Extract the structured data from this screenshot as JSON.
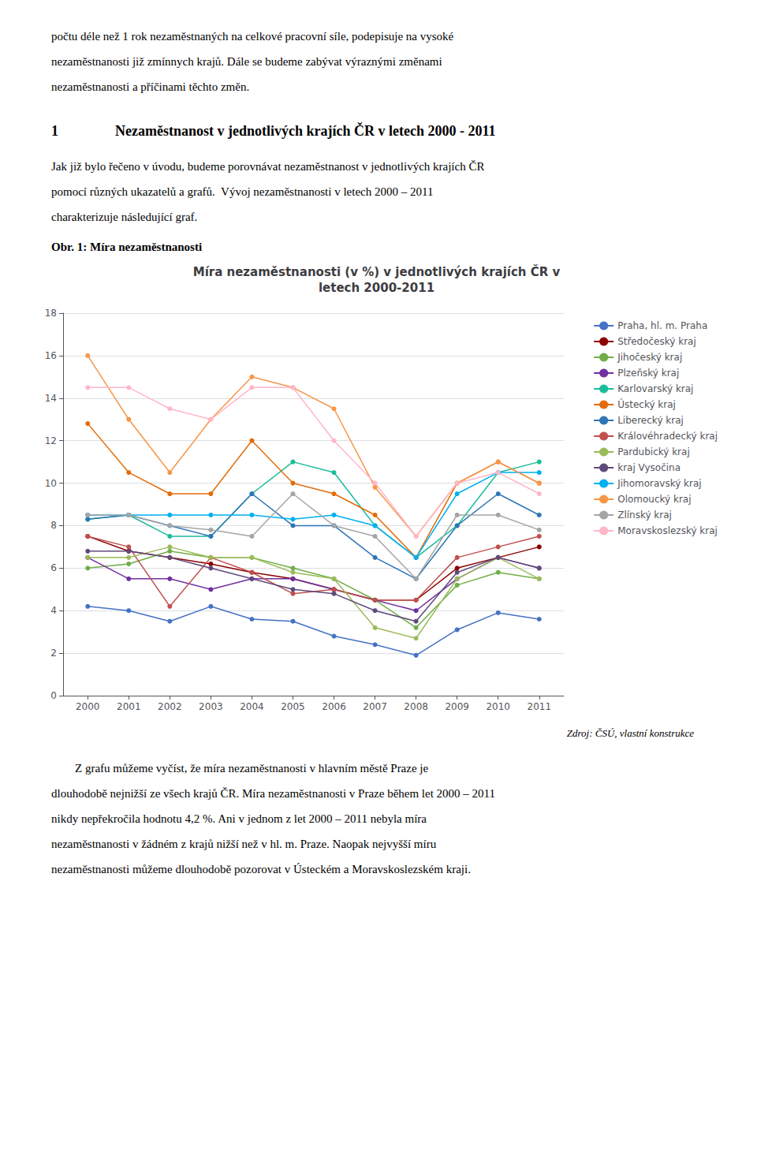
{
  "chart_data": {
    "type": "line",
    "title": "Míra nezaměstnanosti (v %) v jednotlivých krajích ČR v\nletech 2000-2011",
    "x": [
      2000,
      2001,
      2002,
      2003,
      2004,
      2005,
      2006,
      2007,
      2008,
      2009,
      2010,
      2011
    ],
    "xlim": [
      1999.4,
      2011.6
    ],
    "xticks": [
      2000,
      2001,
      2002,
      2003,
      2004,
      2005,
      2006,
      2007,
      2008,
      2009,
      2010,
      2011
    ],
    "ylim": [
      0,
      18
    ],
    "yticks": [
      0,
      2,
      4,
      6,
      8,
      10,
      12,
      14,
      16,
      18
    ],
    "grid": true,
    "legend": "right",
    "marker": "circle",
    "series": [
      {
        "name": "Praha, hl. m. Praha",
        "color": "#4472C4",
        "values": [
          4.2,
          4.0,
          3.5,
          4.2,
          3.6,
          3.5,
          2.8,
          2.4,
          1.9,
          3.1,
          3.9,
          3.6
        ]
      },
      {
        "name": "Středočeský kraj",
        "color": "#8B0000",
        "values": [
          7.5,
          6.8,
          6.5,
          6.2,
          5.8,
          5.5,
          5.0,
          4.5,
          4.5,
          6.0,
          6.5,
          7.0
        ]
      },
      {
        "name": "Jihočeský kraj",
        "color": "#70AD47",
        "values": [
          6.0,
          6.2,
          6.8,
          6.5,
          6.5,
          6.0,
          5.5,
          4.5,
          3.2,
          5.2,
          5.8,
          5.5
        ]
      },
      {
        "name": "Plzeňský kraj",
        "color": "#7030A0",
        "values": [
          6.5,
          5.5,
          5.5,
          5.0,
          5.5,
          5.5,
          5.0,
          4.5,
          4.0,
          5.5,
          6.5,
          6.0
        ]
      },
      {
        "name": "Karlovarský kraj",
        "color": "#1ABC9C",
        "values": [
          8.3,
          8.5,
          7.5,
          7.5,
          9.5,
          11.0,
          10.5,
          8.0,
          6.5,
          8.0,
          10.5,
          11.0
        ]
      },
      {
        "name": "Ústecký kraj",
        "color": "#E36C09",
        "values": [
          12.8,
          10.5,
          9.5,
          9.5,
          12.0,
          10.0,
          9.5,
          8.5,
          6.5,
          10.0,
          11.0,
          10.0
        ]
      },
      {
        "name": "Liberecký kraj",
        "color": "#2E75B6",
        "values": [
          8.3,
          8.5,
          8.0,
          7.5,
          9.5,
          8.0,
          8.0,
          6.5,
          5.5,
          8.0,
          9.5,
          8.5
        ]
      },
      {
        "name": "Královéhradecký kraj",
        "color": "#C0504D",
        "values": [
          7.5,
          7.0,
          4.2,
          6.5,
          5.8,
          4.8,
          5.0,
          4.5,
          4.5,
          6.5,
          7.0,
          7.5
        ]
      },
      {
        "name": "Pardubický kraj",
        "color": "#9BBB59",
        "values": [
          6.5,
          6.5,
          7.0,
          6.5,
          6.5,
          5.8,
          5.5,
          3.2,
          2.7,
          5.5,
          6.5,
          5.5
        ]
      },
      {
        "name": "kraj Vysočina",
        "color": "#604A7B",
        "values": [
          6.8,
          6.8,
          6.5,
          6.0,
          5.5,
          5.0,
          4.8,
          4.0,
          3.5,
          5.8,
          6.5,
          6.0
        ]
      },
      {
        "name": "Jihomoravský kraj",
        "color": "#00B0F0",
        "values": [
          8.5,
          8.5,
          8.5,
          8.5,
          8.5,
          8.3,
          8.5,
          8.0,
          6.5,
          9.5,
          10.5,
          10.5
        ]
      },
      {
        "name": "Olomoucký kraj",
        "color": "#F79646",
        "values": [
          16.0,
          13.0,
          10.5,
          13.0,
          15.0,
          14.5,
          13.5,
          9.8,
          7.5,
          10.0,
          11.0,
          10.0
        ]
      },
      {
        "name": "Zlínský kraj",
        "color": "#A5A5A5",
        "values": [
          8.5,
          8.5,
          8.0,
          7.8,
          7.5,
          9.5,
          8.0,
          7.5,
          5.5,
          8.5,
          8.5,
          7.8
        ]
      },
      {
        "name": "Moravskoslezský kraj",
        "color": "#FFB6C8",
        "values": [
          14.5,
          14.5,
          13.5,
          13.0,
          14.5,
          14.5,
          12.0,
          10.0,
          7.5,
          10.0,
          10.5,
          9.5
        ]
      }
    ]
  },
  "text_before": [
    "počtu déle než 1 rok nezaměstnaných na celkové pracovní síle, podepisuje na vysoké",
    "nezaměstnanosti již zmínnych krajů. Dále se budeme zabývat výraznými změnami",
    "nezaměstnanosti a příčinami těchto změn."
  ],
  "heading": "1    Nezaměstnanost v jednotlivých krajích ČR v letech 2000 - 2011",
  "text_body": [
    "Jak již bylo řečeno v úvodu, budeme porovnávat nezaměstnanost v jednotlivých krajích ČR",
    "pomocí různých ukazatelů a grafů.  Vývoj nezaměstnanosti v letech 2000 – 2011",
    "charakterizuje následující graf."
  ],
  "caption": "Obr. 1: Míra nezaměstnanosti",
  "source": "Zdroj: ČSÚ, vlastní konstrukce",
  "text_after": [
    "        Z grafu můžeme vyčíst, že míra nezaměstnanosti v hlavním městě Praze je",
    "dlouhodobě nejnižší ze všech krajů ČR. Míra nezaměstnanosti v Praze během let 2000 – 2011",
    "nikdy nepřekročila hodnotu 4,2 %. Ani v jednom z let 2000 – 2011 nebyla míra",
    "nezaměstnanosti v žádném z krajů nižší než v hl. m. Praze. Naopak nejvyšší míru",
    "nezaměstnanosti můžeme dlouhodobě pozorovat v Ústeckém a Moravskoslezském kraji."
  ]
}
